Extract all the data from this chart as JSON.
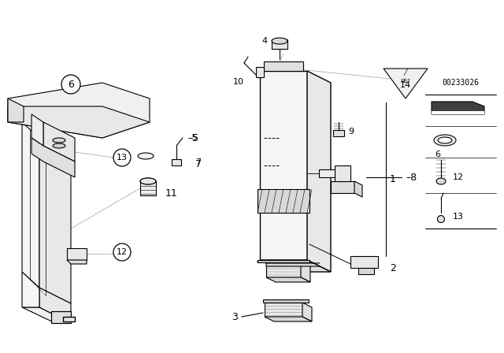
{
  "bg_color": "#ffffff",
  "line_color": "#000000",
  "part_number": "00233026",
  "fig_w": 6.4,
  "fig_h": 4.48,
  "dpi": 100
}
